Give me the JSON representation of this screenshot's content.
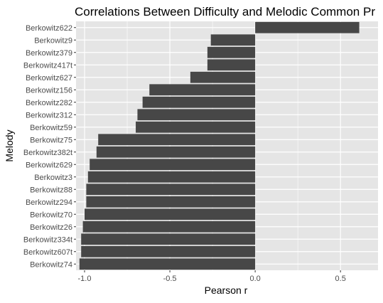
{
  "chart_data": {
    "type": "bar",
    "orientation": "horizontal",
    "title": "Correlations Between Difficulty and Melodic Common Pr",
    "xlabel": "Pearson r",
    "ylabel": "Melody",
    "xlim": [
      -1.05,
      0.72
    ],
    "x_ticks": [
      -1.0,
      -0.5,
      0.0,
      0.5
    ],
    "x_tick_labels": [
      "-1.0",
      "-0.5",
      "0.0",
      "0.5"
    ],
    "grid": true,
    "panel_color": "#e5e5e5",
    "bar_color": "#474747",
    "grid_color": "#ffffff",
    "categories": [
      "Berkowitz622",
      "Berkowitz9",
      "Berkowitz379",
      "Berkowitz417t",
      "Berkowitz627",
      "Berkowitz156",
      "Berkowitz282",
      "Berkowitz312",
      "Berkowitz59",
      "Berkowitz75",
      "Berkowitz382t",
      "Berkowitz629",
      "Berkowitz3",
      "Berkowitz88",
      "Berkowitz294",
      "Berkowitz70",
      "Berkowitz26",
      "Berkowitz334t",
      "Berkowitz607t",
      "Berkowitz74"
    ],
    "values": [
      0.61,
      -0.26,
      -0.28,
      -0.28,
      -0.38,
      -0.62,
      -0.66,
      -0.69,
      -0.7,
      -0.92,
      -0.93,
      -0.97,
      -0.98,
      -0.99,
      -0.99,
      -1.0,
      -1.01,
      -1.02,
      -1.02,
      -1.03
    ]
  }
}
